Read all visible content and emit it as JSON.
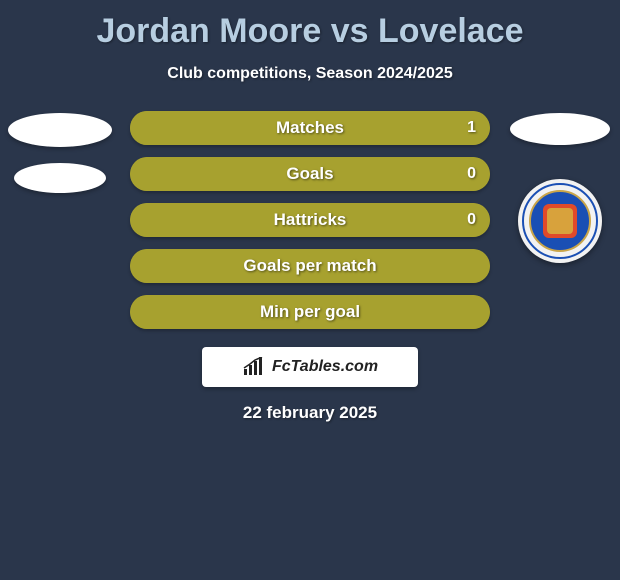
{
  "background_color": "#2a364b",
  "title": {
    "player1": "Jordan Moore",
    "vs": "vs",
    "player2": "Lovelace",
    "color": "#b7cee1",
    "fontsize": 34
  },
  "subtitle": {
    "text": "Club competitions, Season 2024/2025",
    "color": "#ffffff",
    "fontsize": 16
  },
  "left_side": {
    "avatars": 2,
    "avatar_color": "#ffffff"
  },
  "right_side": {
    "avatar_color": "#ffffff",
    "badge": {
      "outer": "#f2f2f2",
      "ring": "#1a4fb4",
      "inner": "#1a4fb4",
      "accent": "#e04a2a",
      "gold": "#c9a54a"
    }
  },
  "bars": [
    {
      "label": "Matches",
      "left_value": "",
      "right_value": "1",
      "left_pct": 0,
      "right_pct": 100,
      "track_color": "#a7a12f",
      "left_color": "#a7a12f",
      "right_color": "#a7a12f"
    },
    {
      "label": "Goals",
      "left_value": "",
      "right_value": "0",
      "left_pct": 50,
      "right_pct": 50,
      "track_color": "#a7a12f",
      "left_color": "#a7a12f",
      "right_color": "#a7a12f"
    },
    {
      "label": "Hattricks",
      "left_value": "",
      "right_value": "0",
      "left_pct": 50,
      "right_pct": 50,
      "track_color": "#a7a12f",
      "left_color": "#a7a12f",
      "right_color": "#a7a12f"
    },
    {
      "label": "Goals per match",
      "left_value": "",
      "right_value": "",
      "left_pct": 50,
      "right_pct": 50,
      "track_color": "#a7a12f",
      "left_color": "#a7a12f",
      "right_color": "#a7a12f"
    },
    {
      "label": "Min per goal",
      "left_value": "",
      "right_value": "",
      "left_pct": 50,
      "right_pct": 50,
      "track_color": "#a7a12f",
      "left_color": "#a7a12f",
      "right_color": "#a7a12f"
    }
  ],
  "bar_style": {
    "height": 34,
    "radius": 17,
    "label_fontsize": 17,
    "value_fontsize": 16,
    "label_color": "#ffffff"
  },
  "footer": {
    "brand": "FcTables.com",
    "bg": "#ffffff",
    "text_color": "#222222"
  },
  "date": {
    "text": "22 february 2025",
    "color": "#ffffff",
    "fontsize": 17
  }
}
